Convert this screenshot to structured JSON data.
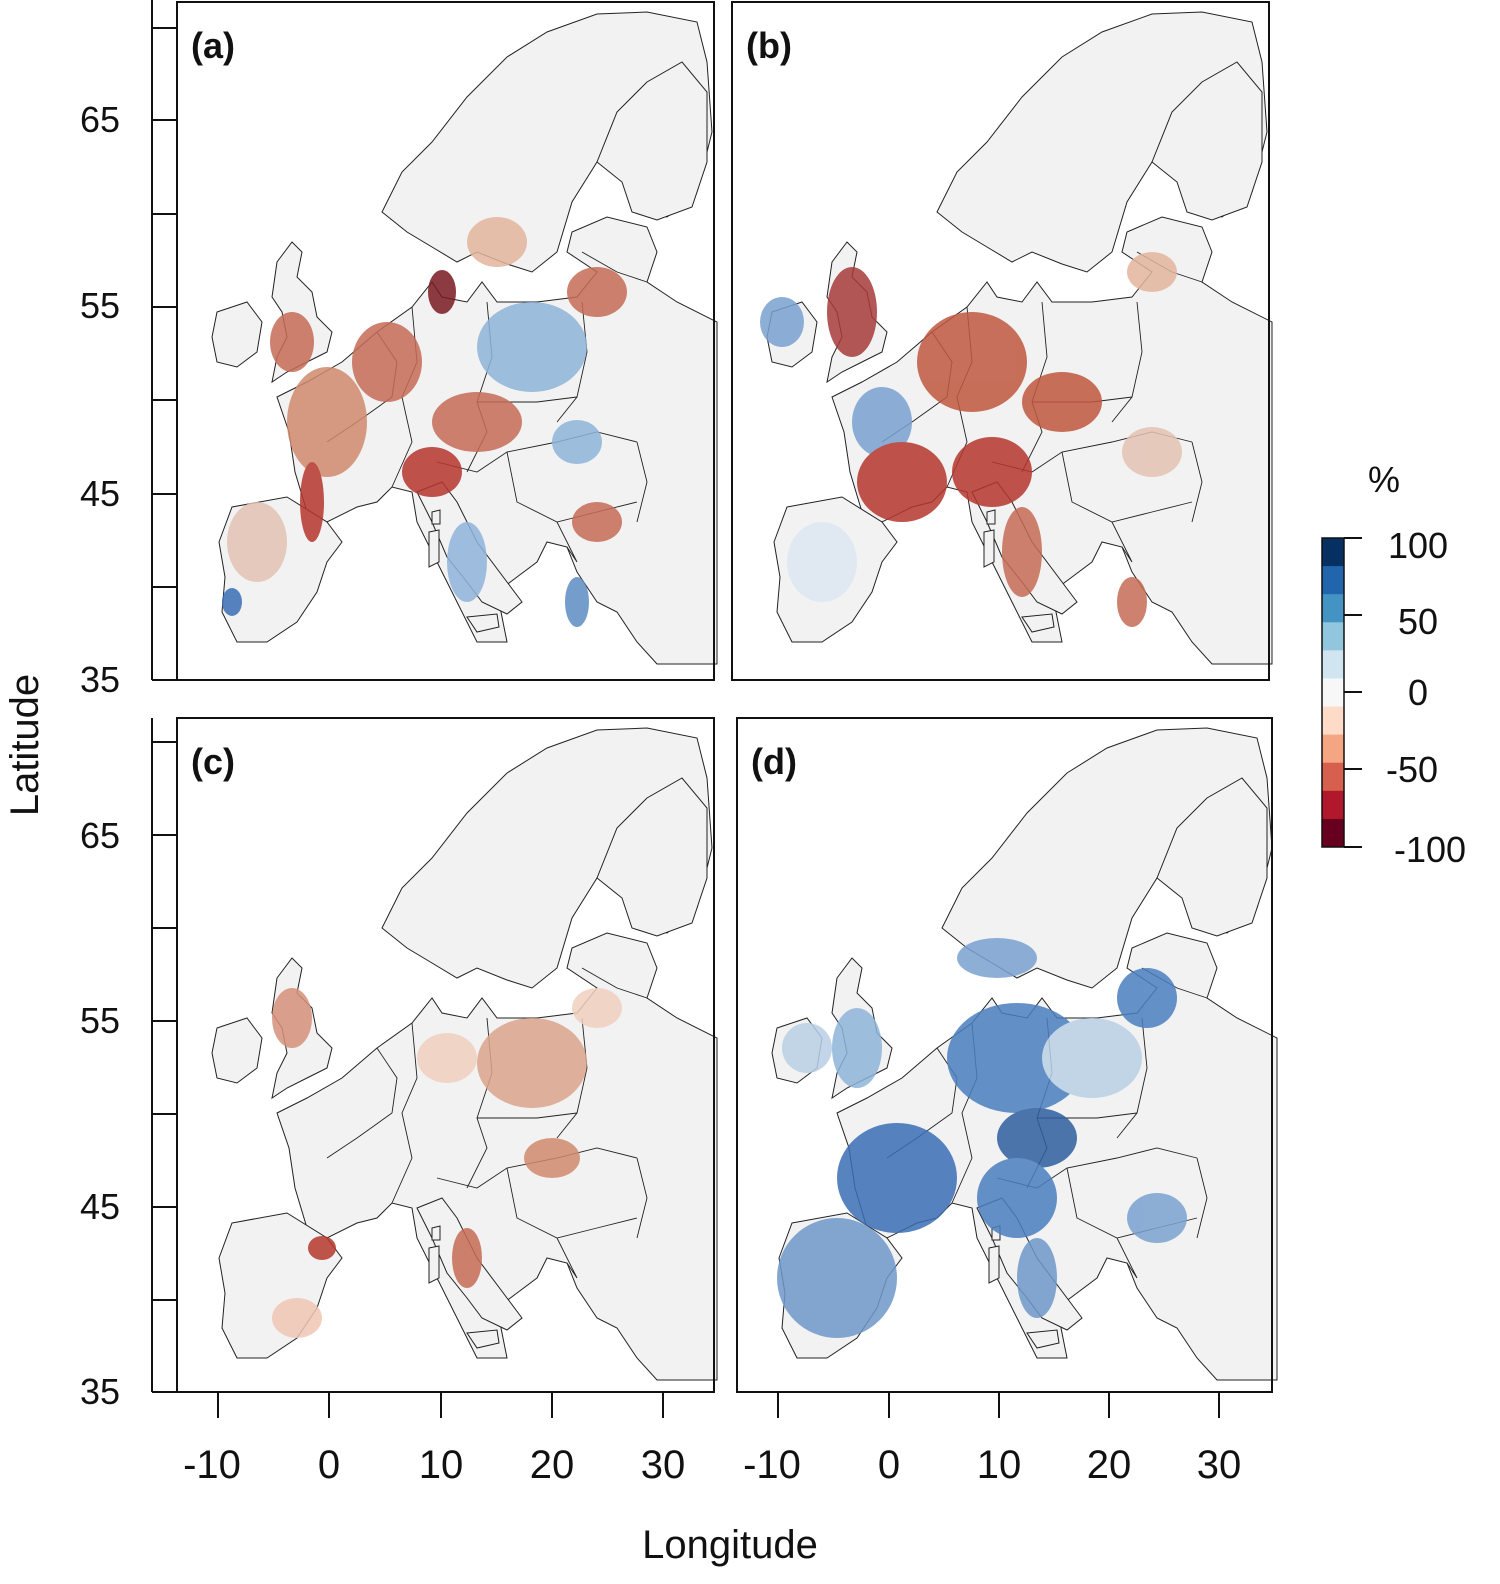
{
  "figure": {
    "xlabel": "Longitude",
    "ylabel": "Latitude",
    "x_ticks": [
      -10,
      0,
      10,
      20,
      30
    ],
    "y_ticks": [
      35,
      45,
      55,
      65
    ],
    "x_range": [
      -13.5,
      34
    ],
    "y_range": [
      35,
      71
    ]
  },
  "panels": [
    {
      "label": "(a)",
      "dominant": "mixed",
      "description_colors": [
        "#b2182b",
        "#4575b4"
      ]
    },
    {
      "label": "(b)",
      "dominant": "negative",
      "description_colors": [
        "#b2182b"
      ]
    },
    {
      "label": "(c)",
      "dominant": "negative-weak",
      "description_colors": [
        "#e8b4a0"
      ]
    },
    {
      "label": "(d)",
      "dominant": "positive",
      "description_colors": [
        "#2c5fa8"
      ]
    }
  ],
  "colorbar": {
    "unit": "%",
    "ticks": [
      "100",
      "50",
      "0",
      "-50",
      "-100"
    ],
    "colors": [
      "#67001f",
      "#b2182b",
      "#d6604d",
      "#f4a582",
      "#fddbc7",
      "#f7f7f7",
      "#d1e5f0",
      "#92c5de",
      "#4393c3",
      "#2166ac",
      "#053061"
    ]
  },
  "colors": {
    "land": "#f2f2f2",
    "border": "#222222",
    "positive": "#3a6fb5",
    "negative": "#b5372d"
  }
}
